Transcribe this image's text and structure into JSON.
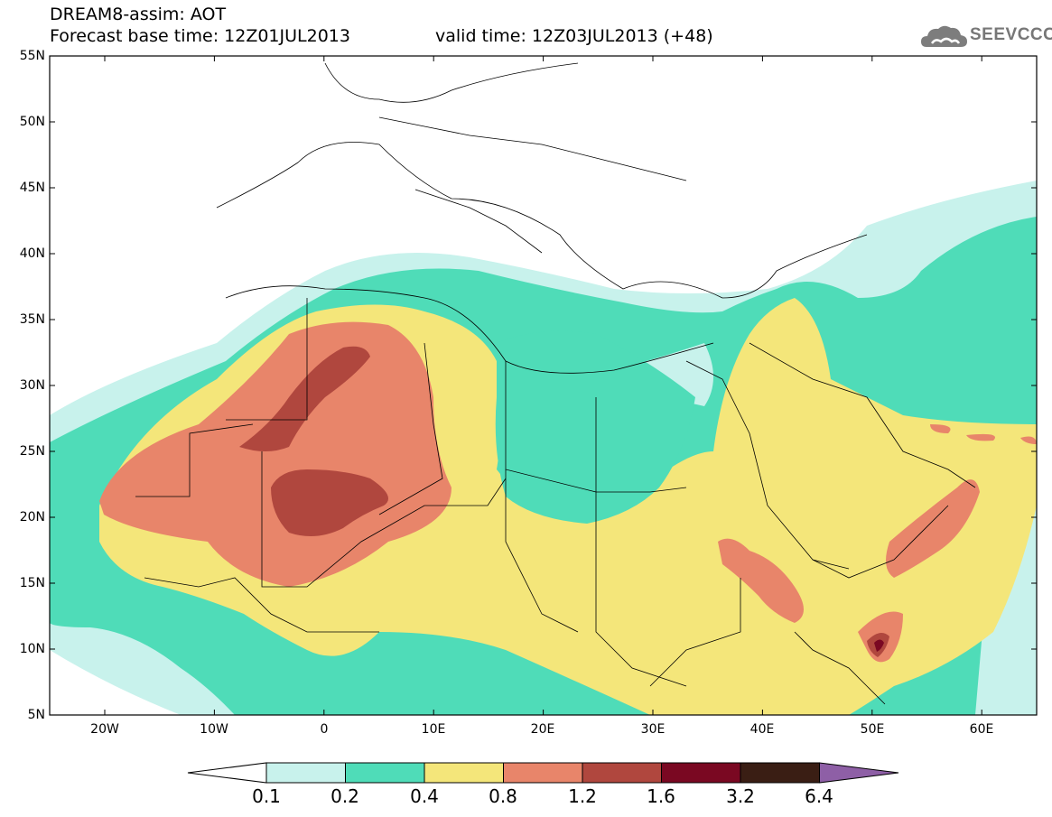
{
  "header": {
    "title": "DREAM8-assim: AOT",
    "base_time": "Forecast base time: 12Z01JUL2013",
    "valid_time": "valid time: 12Z03JUL2013 (+48)"
  },
  "logo": {
    "text": "SEEVCCC",
    "icon": "cloud-icon"
  },
  "map": {
    "variable": "AOT",
    "lat_labels": [
      "55N",
      "50N",
      "45N",
      "40N",
      "35N",
      "30N",
      "25N",
      "20N",
      "15N",
      "10N",
      "5N"
    ],
    "lon_labels": [
      "20W",
      "10W",
      "0",
      "10E",
      "20E",
      "30E",
      "40E",
      "50E",
      "60E"
    ],
    "colors": {
      "c01": "#c8f2ec",
      "c02": "#4fdcb8",
      "c04": "#f4e67a",
      "c08": "#e8856a",
      "c12": "#b0473e",
      "c16": "#7a0822",
      "c32": "#3a1e14",
      "c64": "#8e5fa6",
      "boundary": "#000000"
    }
  },
  "colorbar": {
    "labels": [
      "0.1",
      "0.2",
      "0.4",
      "0.8",
      "1.2",
      "1.6",
      "3.2",
      "6.4"
    ],
    "bins": [
      "#ffffff",
      "#c8f2ec",
      "#4fdcb8",
      "#f4e67a",
      "#e8856a",
      "#b0473e",
      "#7a0822",
      "#3a1e14",
      "#8e5fa6"
    ]
  }
}
